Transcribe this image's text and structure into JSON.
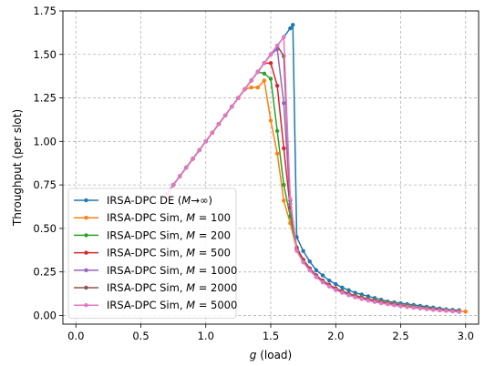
{
  "chart_data": {
    "type": "line",
    "title": "",
    "xlabel_var": "g",
    "xlabel_rest": " (load)",
    "ylabel": "Throughput (per slot)",
    "xlim": [
      -0.1,
      3.1
    ],
    "ylim": [
      -0.05,
      1.75
    ],
    "xticks": [
      0.0,
      0.5,
      1.0,
      1.5,
      2.0,
      2.5,
      3.0
    ],
    "xtick_labels": [
      "0.0",
      "0.5",
      "1.0",
      "1.5",
      "2.0",
      "2.5",
      "3.0"
    ],
    "yticks": [
      0.0,
      0.25,
      0.5,
      0.75,
      1.0,
      1.25,
      1.5,
      1.75
    ],
    "ytick_labels": [
      "0.00",
      "0.25",
      "0.50",
      "0.75",
      "1.00",
      "1.25",
      "1.50",
      "1.75"
    ],
    "grid": true,
    "legend_position": "lower-left",
    "series": [
      {
        "name": "IRSA-DPC DE (M→∞)",
        "legend_prefix": "IRSA-DPC DE (",
        "legend_math": "M",
        "legend_suffix": "→∞)",
        "color": "#1f77b4",
        "x": [
          0.7,
          0.75,
          0.8,
          0.85,
          0.9,
          0.95,
          1.0,
          1.05,
          1.1,
          1.15,
          1.2,
          1.25,
          1.3,
          1.35,
          1.4,
          1.45,
          1.5,
          1.55,
          1.6,
          1.65,
          1.67,
          1.7,
          1.75,
          1.8,
          1.85,
          1.9,
          1.95,
          2.0,
          2.05,
          2.1,
          2.15,
          2.2,
          2.25,
          2.3,
          2.35,
          2.4,
          2.45,
          2.5,
          2.55,
          2.6,
          2.65,
          2.7,
          2.75,
          2.8,
          2.85,
          2.9,
          2.95
        ],
        "y": [
          0.7,
          0.75,
          0.8,
          0.85,
          0.9,
          0.95,
          1.0,
          1.05,
          1.1,
          1.15,
          1.2,
          1.25,
          1.3,
          1.35,
          1.4,
          1.45,
          1.5,
          1.55,
          1.6,
          1.65,
          1.67,
          0.45,
          0.37,
          0.31,
          0.26,
          0.23,
          0.2,
          0.18,
          0.16,
          0.145,
          0.13,
          0.12,
          0.11,
          0.1,
          0.09,
          0.08,
          0.075,
          0.07,
          0.065,
          0.06,
          0.055,
          0.05,
          0.045,
          0.04,
          0.035,
          0.032,
          0.03
        ]
      },
      {
        "name": "IRSA-DPC Sim, M = 100",
        "legend_prefix": "IRSA-DPC Sim, ",
        "legend_math": "M",
        "legend_suffix": " = 100",
        "color": "#ff7f0e",
        "x": [
          0.7,
          0.75,
          0.8,
          0.85,
          0.9,
          0.95,
          1.0,
          1.05,
          1.1,
          1.15,
          1.2,
          1.25,
          1.3,
          1.35,
          1.4,
          1.45,
          1.5,
          1.55,
          1.6,
          1.65,
          1.7,
          1.75,
          1.8,
          1.85,
          1.9,
          1.95,
          2.0,
          2.05,
          2.1,
          2.15,
          2.2,
          2.25,
          2.3,
          2.35,
          2.4,
          2.45,
          2.5,
          2.55,
          2.6,
          2.65,
          2.7,
          2.75,
          2.8,
          2.85,
          2.9,
          2.95,
          3.0
        ],
        "y": [
          0.7,
          0.75,
          0.8,
          0.85,
          0.9,
          0.95,
          1.0,
          1.05,
          1.1,
          1.15,
          1.2,
          1.25,
          1.3,
          1.31,
          1.31,
          1.35,
          1.12,
          0.93,
          0.66,
          0.53,
          0.38,
          0.32,
          0.27,
          0.23,
          0.2,
          0.175,
          0.155,
          0.14,
          0.125,
          0.115,
          0.105,
          0.095,
          0.088,
          0.08,
          0.073,
          0.067,
          0.061,
          0.056,
          0.051,
          0.046,
          0.042,
          0.038,
          0.034,
          0.031,
          0.028,
          0.025,
          0.022
        ]
      },
      {
        "name": "IRSA-DPC Sim, M = 200",
        "legend_prefix": "IRSA-DPC Sim, ",
        "legend_math": "M",
        "legend_suffix": " = 200",
        "color": "#2ca02c",
        "x": [
          0.7,
          0.75,
          0.8,
          0.85,
          0.9,
          0.95,
          1.0,
          1.05,
          1.1,
          1.15,
          1.2,
          1.25,
          1.3,
          1.35,
          1.4,
          1.45,
          1.5,
          1.55,
          1.6,
          1.65,
          1.7,
          1.75,
          1.8,
          1.85,
          1.9,
          1.95,
          2.0,
          2.05,
          2.1,
          2.15,
          2.2,
          2.25,
          2.3,
          2.35,
          2.4,
          2.45,
          2.5,
          2.55,
          2.6,
          2.65,
          2.7,
          2.75,
          2.8,
          2.85,
          2.9,
          2.95
        ],
        "y": [
          0.7,
          0.75,
          0.8,
          0.85,
          0.9,
          0.95,
          1.0,
          1.05,
          1.1,
          1.15,
          1.2,
          1.25,
          1.3,
          1.35,
          1.4,
          1.39,
          1.36,
          1.06,
          0.75,
          0.57,
          0.39,
          0.32,
          0.27,
          0.23,
          0.2,
          0.175,
          0.155,
          0.14,
          0.125,
          0.113,
          0.103,
          0.094,
          0.086,
          0.078,
          0.071,
          0.065,
          0.059,
          0.054,
          0.049,
          0.045,
          0.041,
          0.037,
          0.033,
          0.03,
          0.027,
          0.024
        ]
      },
      {
        "name": "IRSA-DPC Sim, M = 500",
        "legend_prefix": "IRSA-DPC Sim, ",
        "legend_math": "M",
        "legend_suffix": " = 500",
        "color": "#d62728",
        "x": [
          0.7,
          0.75,
          0.8,
          0.85,
          0.9,
          0.95,
          1.0,
          1.05,
          1.1,
          1.15,
          1.2,
          1.25,
          1.3,
          1.35,
          1.4,
          1.45,
          1.5,
          1.55,
          1.6,
          1.65,
          1.7,
          1.75,
          1.8,
          1.85,
          1.9,
          1.95,
          2.0,
          2.05,
          2.1,
          2.15,
          2.2,
          2.25,
          2.3,
          2.35,
          2.4,
          2.45,
          2.5,
          2.55,
          2.6,
          2.65,
          2.7,
          2.75,
          2.8,
          2.85,
          2.9,
          2.95
        ],
        "y": [
          0.7,
          0.75,
          0.8,
          0.85,
          0.9,
          0.95,
          1.0,
          1.05,
          1.1,
          1.15,
          1.2,
          1.25,
          1.3,
          1.35,
          1.4,
          1.45,
          1.45,
          1.32,
          0.96,
          0.62,
          0.39,
          0.32,
          0.27,
          0.23,
          0.2,
          0.175,
          0.155,
          0.138,
          0.123,
          0.111,
          0.101,
          0.092,
          0.084,
          0.076,
          0.069,
          0.063,
          0.057,
          0.052,
          0.047,
          0.043,
          0.039,
          0.035,
          0.032,
          0.029,
          0.026,
          0.023
        ]
      },
      {
        "name": "IRSA-DPC Sim, M = 1000",
        "legend_prefix": "IRSA-DPC Sim, ",
        "legend_math": "M",
        "legend_suffix": " = 1000",
        "color": "#9467bd",
        "x": [
          0.7,
          0.75,
          0.8,
          0.85,
          0.9,
          0.95,
          1.0,
          1.05,
          1.1,
          1.15,
          1.2,
          1.25,
          1.3,
          1.35,
          1.4,
          1.45,
          1.5,
          1.55,
          1.6,
          1.65,
          1.7,
          1.75,
          1.8,
          1.85,
          1.9,
          1.95,
          2.0,
          2.05,
          2.1,
          2.15,
          2.2,
          2.25,
          2.3,
          2.35,
          2.4,
          2.45,
          2.5,
          2.55,
          2.6,
          2.65,
          2.7,
          2.75,
          2.8,
          2.85,
          2.9,
          2.95
        ],
        "y": [
          0.7,
          0.75,
          0.8,
          0.85,
          0.9,
          0.95,
          1.0,
          1.05,
          1.1,
          1.15,
          1.2,
          1.25,
          1.3,
          1.35,
          1.4,
          1.45,
          1.5,
          1.53,
          1.22,
          0.64,
          0.38,
          0.31,
          0.265,
          0.225,
          0.195,
          0.17,
          0.15,
          0.134,
          0.12,
          0.108,
          0.098,
          0.089,
          0.081,
          0.074,
          0.067,
          0.061,
          0.056,
          0.051,
          0.046,
          0.042,
          0.038,
          0.034,
          0.031,
          0.028,
          0.025,
          0.022
        ]
      },
      {
        "name": "IRSA-DPC Sim, M = 2000",
        "legend_prefix": "IRSA-DPC Sim, ",
        "legend_math": "M",
        "legend_suffix": " = 2000",
        "color": "#8c564b",
        "x": [
          0.7,
          0.75,
          0.8,
          0.85,
          0.9,
          0.95,
          1.0,
          1.05,
          1.1,
          1.15,
          1.2,
          1.25,
          1.3,
          1.35,
          1.4,
          1.45,
          1.5,
          1.55,
          1.6,
          1.65,
          1.7,
          1.75,
          1.8,
          1.85,
          1.9,
          1.95,
          2.0,
          2.05,
          2.1,
          2.15,
          2.2,
          2.25,
          2.3,
          2.35,
          2.4,
          2.45,
          2.5,
          2.55,
          2.6,
          2.65,
          2.7,
          2.75,
          2.8,
          2.85,
          2.9,
          2.95
        ],
        "y": [
          0.7,
          0.75,
          0.8,
          0.85,
          0.9,
          0.95,
          1.0,
          1.05,
          1.1,
          1.15,
          1.2,
          1.25,
          1.3,
          1.35,
          1.4,
          1.45,
          1.5,
          1.55,
          1.49,
          0.66,
          0.38,
          0.31,
          0.26,
          0.222,
          0.192,
          0.168,
          0.148,
          0.132,
          0.118,
          0.106,
          0.096,
          0.087,
          0.079,
          0.072,
          0.066,
          0.06,
          0.055,
          0.05,
          0.045,
          0.041,
          0.037,
          0.033,
          0.03,
          0.027,
          0.024,
          0.021
        ]
      },
      {
        "name": "IRSA-DPC Sim, M = 5000",
        "legend_prefix": "IRSA-DPC Sim, ",
        "legend_math": "M",
        "legend_suffix": " = 5000",
        "color": "#e377c2",
        "x": [
          0.7,
          0.75,
          0.8,
          0.85,
          0.9,
          0.95,
          1.0,
          1.05,
          1.1,
          1.15,
          1.2,
          1.25,
          1.3,
          1.35,
          1.4,
          1.45,
          1.5,
          1.55,
          1.6,
          1.65,
          1.7,
          1.75,
          1.8,
          1.85,
          1.9,
          1.95,
          2.0,
          2.05,
          2.1,
          2.15,
          2.2,
          2.25,
          2.3,
          2.35,
          2.4,
          2.45,
          2.5,
          2.55,
          2.6,
          2.65,
          2.7,
          2.75,
          2.8,
          2.85,
          2.9,
          2.95
        ],
        "y": [
          0.7,
          0.75,
          0.8,
          0.85,
          0.9,
          0.95,
          1.0,
          1.05,
          1.1,
          1.15,
          1.2,
          1.25,
          1.3,
          1.35,
          1.4,
          1.45,
          1.5,
          1.55,
          1.6,
          0.67,
          0.37,
          0.305,
          0.258,
          0.22,
          0.19,
          0.166,
          0.146,
          0.13,
          0.116,
          0.104,
          0.094,
          0.085,
          0.077,
          0.07,
          0.064,
          0.058,
          0.053,
          0.048,
          0.044,
          0.04,
          0.036,
          0.032,
          0.029,
          0.026,
          0.023,
          0.02
        ]
      }
    ]
  }
}
